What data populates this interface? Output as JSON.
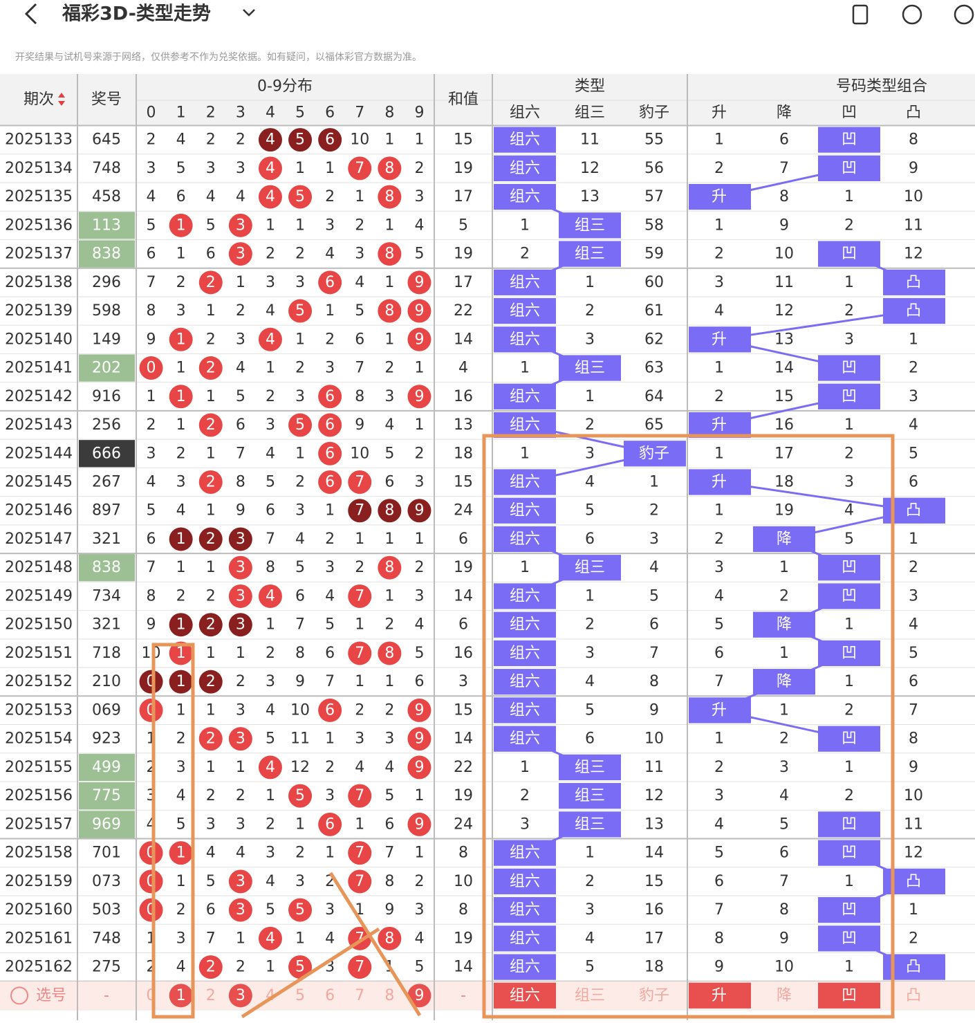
{
  "header": {
    "title": "福彩3D-类型走势",
    "disclaimer": "开奖结果与试机号来源于网络，仅供参考不作为兑奖依据。如有疑问，以福体彩官方数据为准。"
  },
  "table": {
    "columns": {
      "period": "期次",
      "number": "奖号",
      "distribution": "0-9分布",
      "digit_headers": [
        0,
        1,
        2,
        3,
        4,
        5,
        6,
        7,
        8,
        9
      ],
      "sum": "和值",
      "type": "类型",
      "type_headers": [
        "组六",
        "组三",
        "豹子"
      ],
      "combo": "号码类型组合",
      "combo_headers": [
        "升",
        "降",
        "凹",
        "凸"
      ]
    },
    "colors": {
      "highlight": "#7b6cf6",
      "hit": "#e84646",
      "hit_dark": "#8a1f1f",
      "type_number_bg": [
        "#ffffff",
        "#9cbf94",
        "#3b3b3b"
      ],
      "select": "#e85050",
      "select_bg": "#fdebe8",
      "link": "#7b6cf6"
    },
    "rows": [
      {
        "period": "2025133",
        "number": "645",
        "dist": [
          2,
          4,
          2,
          2,
          4,
          5,
          6,
          10,
          1,
          1
        ],
        "dark": true,
        "sum": 15,
        "type": [
          "组六",
          11,
          55
        ],
        "combo": [
          1,
          6,
          "凹",
          8
        ]
      },
      {
        "period": "2025134",
        "number": "748",
        "dist": [
          3,
          5,
          3,
          3,
          4,
          1,
          1,
          7,
          8,
          2
        ],
        "sum": 19,
        "type": [
          "组六",
          12,
          56
        ],
        "combo": [
          2,
          7,
          "凹",
          9
        ]
      },
      {
        "period": "2025135",
        "number": "458",
        "dist": [
          4,
          6,
          4,
          4,
          4,
          5,
          2,
          1,
          8,
          3
        ],
        "sum": 17,
        "type": [
          "组六",
          13,
          57
        ],
        "combo": [
          "升",
          8,
          1,
          10
        ]
      },
      {
        "period": "2025136",
        "number": "113",
        "dist": [
          5,
          1,
          5,
          3,
          1,
          1,
          3,
          2,
          1,
          4
        ],
        "sum": 5,
        "type": [
          1,
          "组三",
          58
        ],
        "combo": [
          1,
          9,
          2,
          11
        ]
      },
      {
        "period": "2025137",
        "number": "838",
        "dist": [
          6,
          1,
          6,
          3,
          2,
          2,
          4,
          3,
          8,
          5
        ],
        "sum": 19,
        "type": [
          2,
          "组三",
          59
        ],
        "combo": [
          2,
          10,
          "凹",
          12
        ]
      },
      {
        "period": "2025138",
        "number": "296",
        "dist": [
          7,
          2,
          2,
          1,
          3,
          3,
          6,
          4,
          1,
          9
        ],
        "sum": 17,
        "type": [
          "组六",
          1,
          60
        ],
        "combo": [
          3,
          11,
          1,
          "凸"
        ]
      },
      {
        "period": "2025139",
        "number": "598",
        "dist": [
          8,
          3,
          1,
          2,
          4,
          5,
          1,
          5,
          8,
          9
        ],
        "sum": 22,
        "type": [
          "组六",
          2,
          61
        ],
        "combo": [
          4,
          12,
          2,
          "凸"
        ]
      },
      {
        "period": "2025140",
        "number": "149",
        "dist": [
          9,
          1,
          2,
          3,
          4,
          1,
          2,
          6,
          1,
          9
        ],
        "sum": 14,
        "type": [
          "组六",
          3,
          62
        ],
        "combo": [
          "升",
          13,
          3,
          1
        ]
      },
      {
        "period": "2025141",
        "number": "202",
        "dist": [
          0,
          1,
          2,
          4,
          1,
          2,
          3,
          7,
          2,
          1
        ],
        "sum": 4,
        "type": [
          1,
          "组三",
          63
        ],
        "combo": [
          1,
          14,
          "凹",
          2
        ]
      },
      {
        "period": "2025142",
        "number": "916",
        "dist": [
          1,
          1,
          1,
          5,
          2,
          3,
          6,
          8,
          3,
          9
        ],
        "sum": 16,
        "type": [
          "组六",
          1,
          64
        ],
        "combo": [
          2,
          15,
          "凹",
          3
        ]
      },
      {
        "period": "2025143",
        "number": "256",
        "dist": [
          2,
          1,
          2,
          6,
          3,
          5,
          6,
          9,
          4,
          1
        ],
        "sum": 13,
        "type": [
          "组六",
          2,
          65
        ],
        "combo": [
          "升",
          16,
          1,
          4
        ]
      },
      {
        "period": "2025144",
        "number": "666",
        "dist": [
          3,
          2,
          1,
          7,
          4,
          1,
          6,
          10,
          5,
          2
        ],
        "sum": 18,
        "type": [
          1,
          3,
          "豹子"
        ],
        "combo": [
          1,
          17,
          2,
          5
        ]
      },
      {
        "period": "2025145",
        "number": "267",
        "dist": [
          4,
          3,
          2,
          8,
          5,
          2,
          6,
          7,
          6,
          3
        ],
        "sum": 15,
        "type": [
          "组六",
          4,
          1
        ],
        "combo": [
          "升",
          18,
          3,
          6
        ]
      },
      {
        "period": "2025146",
        "number": "897",
        "dist": [
          5,
          4,
          1,
          9,
          6,
          3,
          1,
          7,
          8,
          9
        ],
        "dark": true,
        "sum": 24,
        "type": [
          "组六",
          5,
          2
        ],
        "combo": [
          1,
          19,
          4,
          "凸"
        ]
      },
      {
        "period": "2025147",
        "number": "321",
        "dist": [
          6,
          1,
          2,
          3,
          7,
          4,
          2,
          1,
          1,
          1
        ],
        "dark": true,
        "sum": 6,
        "type": [
          "组六",
          6,
          3
        ],
        "combo": [
          2,
          "降",
          5,
          1
        ]
      },
      {
        "period": "2025148",
        "number": "838",
        "dist": [
          7,
          1,
          1,
          3,
          8,
          5,
          3,
          2,
          8,
          2
        ],
        "sum": 19,
        "type": [
          1,
          "组三",
          4
        ],
        "combo": [
          3,
          1,
          "凹",
          2
        ]
      },
      {
        "period": "2025149",
        "number": "734",
        "dist": [
          8,
          2,
          2,
          3,
          4,
          6,
          4,
          7,
          1,
          3
        ],
        "sum": 14,
        "type": [
          "组六",
          1,
          5
        ],
        "combo": [
          4,
          2,
          "凹",
          3
        ]
      },
      {
        "period": "2025150",
        "number": "321",
        "dist": [
          9,
          1,
          2,
          3,
          1,
          7,
          5,
          1,
          2,
          4
        ],
        "dark": true,
        "sum": 6,
        "type": [
          "组六",
          2,
          6
        ],
        "combo": [
          5,
          "降",
          1,
          4
        ]
      },
      {
        "period": "2025151",
        "number": "718",
        "dist": [
          10,
          1,
          1,
          1,
          2,
          8,
          6,
          7,
          8,
          5
        ],
        "sum": 16,
        "type": [
          "组六",
          3,
          7
        ],
        "combo": [
          6,
          1,
          "凹",
          5
        ]
      },
      {
        "period": "2025152",
        "number": "210",
        "dist": [
          0,
          1,
          2,
          2,
          3,
          9,
          7,
          1,
          1,
          6
        ],
        "dark": true,
        "sum": 3,
        "type": [
          "组六",
          4,
          8
        ],
        "combo": [
          7,
          "降",
          1,
          6
        ]
      },
      {
        "period": "2025153",
        "number": "069",
        "dist": [
          0,
          1,
          1,
          3,
          4,
          10,
          6,
          2,
          2,
          9
        ],
        "sum": 15,
        "type": [
          "组六",
          5,
          9
        ],
        "combo": [
          "升",
          1,
          2,
          7
        ]
      },
      {
        "period": "2025154",
        "number": "923",
        "dist": [
          1,
          2,
          2,
          3,
          5,
          11,
          1,
          3,
          3,
          9
        ],
        "sum": 14,
        "type": [
          "组六",
          6,
          10
        ],
        "combo": [
          1,
          2,
          "凹",
          8
        ]
      },
      {
        "period": "2025155",
        "number": "499",
        "dist": [
          2,
          3,
          1,
          1,
          4,
          12,
          2,
          4,
          4,
          9
        ],
        "sum": 22,
        "type": [
          1,
          "组三",
          11
        ],
        "combo": [
          2,
          3,
          1,
          9
        ]
      },
      {
        "period": "2025156",
        "number": "775",
        "dist": [
          3,
          4,
          2,
          2,
          1,
          5,
          3,
          7,
          5,
          1
        ],
        "sum": 19,
        "type": [
          2,
          "组三",
          12
        ],
        "combo": [
          3,
          4,
          2,
          10
        ]
      },
      {
        "period": "2025157",
        "number": "969",
        "dist": [
          4,
          5,
          3,
          3,
          2,
          1,
          6,
          1,
          6,
          9
        ],
        "sum": 24,
        "type": [
          3,
          "组三",
          13
        ],
        "combo": [
          4,
          5,
          "凹",
          11
        ]
      },
      {
        "period": "2025158",
        "number": "701",
        "dist": [
          0,
          1,
          4,
          4,
          3,
          2,
          1,
          7,
          7,
          1
        ],
        "sum": 8,
        "type": [
          "组六",
          1,
          14
        ],
        "combo": [
          5,
          6,
          "凹",
          12
        ]
      },
      {
        "period": "2025159",
        "number": "073",
        "dist": [
          0,
          1,
          5,
          3,
          4,
          3,
          2,
          7,
          8,
          2
        ],
        "sum": 10,
        "type": [
          "组六",
          2,
          15
        ],
        "combo": [
          6,
          7,
          1,
          "凸"
        ]
      },
      {
        "period": "2025160",
        "number": "503",
        "dist": [
          0,
          2,
          6,
          3,
          5,
          5,
          3,
          1,
          9,
          3
        ],
        "sum": 8,
        "type": [
          "组六",
          3,
          16
        ],
        "combo": [
          7,
          8,
          "凹",
          1
        ]
      },
      {
        "period": "2025161",
        "number": "748",
        "dist": [
          1,
          3,
          7,
          1,
          4,
          1,
          4,
          7,
          8,
          4
        ],
        "sum": 19,
        "type": [
          "组六",
          4,
          17
        ],
        "combo": [
          8,
          9,
          "凹",
          2
        ]
      },
      {
        "period": "2025162",
        "number": "275",
        "dist": [
          2,
          4,
          2,
          2,
          1,
          5,
          3,
          7,
          1,
          5
        ],
        "sum": 14,
        "type": [
          "组六",
          5,
          18
        ],
        "combo": [
          9,
          10,
          1,
          "凸"
        ]
      }
    ],
    "select_row": {
      "label": "选号",
      "number": "-",
      "digits": [
        0,
        1,
        2,
        3,
        4,
        5,
        6,
        7,
        8,
        9
      ],
      "selected_digits": [
        1,
        3,
        9
      ],
      "sum": "-",
      "types": [
        "组六",
        "组三",
        "豹子"
      ],
      "type_selected": [
        0
      ],
      "combo": [
        "升",
        "降",
        "凹",
        "凸"
      ],
      "combo_selected": [
        0,
        2
      ]
    }
  }
}
